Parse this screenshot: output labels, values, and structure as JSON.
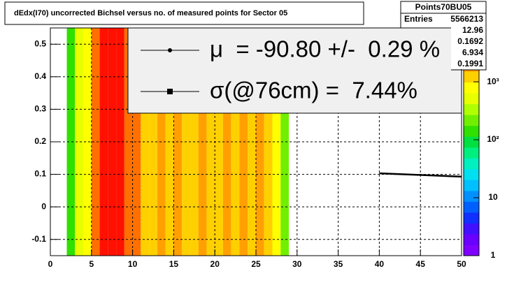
{
  "chart_data": {
    "type": "heatmap",
    "title": "dEdx(I70) uncorrected Bichsel versus no. of measured points for Sector 05",
    "bins": [
      2,
      3,
      4,
      5,
      6,
      7,
      8,
      9,
      10,
      11,
      12,
      13,
      14,
      15,
      16,
      17,
      18,
      19,
      20,
      21,
      22,
      23,
      24,
      25,
      26,
      27,
      28,
      29
    ],
    "z": [
      150,
      450,
      900,
      2500,
      6500,
      6000,
      6000,
      3500,
      2500,
      1500,
      1000,
      1800,
      1000,
      2000,
      1100,
      1000,
      1800,
      1000,
      1000,
      1700,
      1000,
      1700,
      1000,
      2000,
      1000,
      800,
      200
    ],
    "palette": [
      "#8000ff",
      "#6a00ff",
      "#4010ff",
      "#1030ff",
      "#0060ff",
      "#0090ff",
      "#00c0ff",
      "#00e0f0",
      "#00f0c0",
      "#00f080",
      "#00e040",
      "#30e000",
      "#70f000",
      "#b0ff00",
      "#e8ff00",
      "#ffff00",
      "#ffd000",
      "#ffa000",
      "#ff7000",
      "#ff4000",
      "#ff1000"
    ],
    "xlim": [
      0,
      50
    ],
    "ylim": [
      -0.15,
      0.55
    ],
    "zlim": [
      1,
      8500
    ],
    "zlog": true,
    "xticks": [
      0,
      5,
      10,
      15,
      20,
      25,
      30,
      35,
      40,
      45,
      50
    ],
    "yticks": [
      -0.1,
      0,
      0.1,
      0.2,
      0.3,
      0.4,
      0.5
    ],
    "zticks": [
      1,
      10,
      {
        "value": 100,
        "label": "10²"
      },
      {
        "value": 1000,
        "label": "10³"
      }
    ],
    "grid": true,
    "fit": {
      "x": [
        40,
        50
      ],
      "values": [
        0.103,
        0.093
      ],
      "color": "#000000"
    },
    "stats": {
      "title": "Points70BU05",
      "entries_label": "Entries",
      "entries": "5566213",
      "values": [
        "12.96",
        "0.1692",
        "6.934",
        "0.1991"
      ]
    },
    "legend": [
      "μ  = -90.80 +/-  0.29 %",
      "σ(@76cm) =  7.44%"
    ]
  }
}
